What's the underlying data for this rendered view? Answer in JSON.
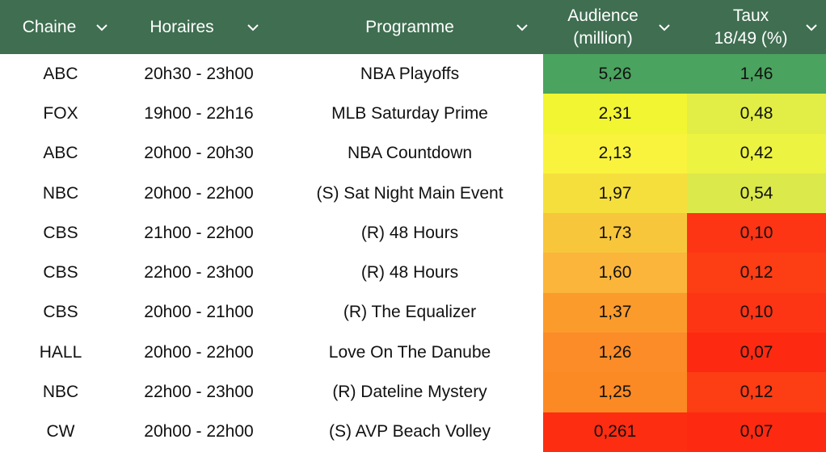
{
  "columns": [
    {
      "label": "Chaine",
      "icon": "chevron-down-icon"
    },
    {
      "label": "Horaires",
      "icon": "chevron-down-icon"
    },
    {
      "label": "Programme",
      "icon": "chevron-down-icon"
    },
    {
      "label": "Audience (million)",
      "line1": "Audience",
      "line2": "(million)",
      "icon": "chevron-down-icon"
    },
    {
      "label": "Taux 18/49 (%)",
      "line1": "Taux",
      "line2": "18/49 (%)",
      "icon": "chevron-down-icon"
    }
  ],
  "colors": {
    "header_bg": "#3f6e51",
    "header_text": "#ffffff"
  },
  "rows": [
    {
      "chaine": "ABC",
      "horaires": "20h30 - 23h00",
      "programme": "NBA Playoffs",
      "audience": "5,26",
      "taux": "1,46",
      "audience_color": "#4aa35e",
      "taux_color": "#4aa35e"
    },
    {
      "chaine": "FOX",
      "horaires": "19h00 - 22h16",
      "programme": "MLB Saturday Prime",
      "audience": "2,31",
      "taux": "0,48",
      "audience_color": "#f2f531",
      "taux_color": "#e2ee45"
    },
    {
      "chaine": "ABC",
      "horaires": "20h00 - 20h30",
      "programme": "NBA Countdown",
      "audience": "2,13",
      "taux": "0,42",
      "audience_color": "#f9f33e",
      "taux_color": "#ecf341"
    },
    {
      "chaine": "NBC",
      "horaires": "20h00 - 22h00",
      "programme": "(S) Sat Night Main Event",
      "audience": "1,97",
      "taux": "0,54",
      "audience_color": "#f5df3d",
      "taux_color": "#dbe94b"
    },
    {
      "chaine": "CBS",
      "horaires": "21h00 - 22h00",
      "programme": "(R) 48 Hours",
      "audience": "1,73",
      "taux": "0,10",
      "audience_color": "#f8c63b",
      "taux_color": "#fd3515"
    },
    {
      "chaine": "CBS",
      "horaires": "22h00 - 23h00",
      "programme": "(R) 48 Hours",
      "audience": "1,60",
      "taux": "0,12",
      "audience_color": "#fbb53b",
      "taux_color": "#fd3d14"
    },
    {
      "chaine": "CBS",
      "horaires": "20h00 - 21h00",
      "programme": "(R) The Equalizer",
      "audience": "1,37",
      "taux": "0,10",
      "audience_color": "#fb9b2c",
      "taux_color": "#fd3515"
    },
    {
      "chaine": "HALL",
      "horaires": "20h00 - 22h00",
      "programme": "Love On The Danube",
      "audience": "1,26",
      "taux": "0,07",
      "audience_color": "#fb8c27",
      "taux_color": "#fd2a11"
    },
    {
      "chaine": "NBC",
      "horaires": "22h00 - 23h00",
      "programme": "(R) Dateline Mystery",
      "audience": "1,25",
      "taux": "0,12",
      "audience_color": "#fb8a24",
      "taux_color": "#fd3d14"
    },
    {
      "chaine": "CW",
      "horaires": "20h00 - 22h00",
      "programme": "(S) AVP Beach Volley",
      "audience": "0,261",
      "taux": "0,07",
      "audience_color": "#fd2d12",
      "taux_color": "#fd2a11"
    }
  ]
}
